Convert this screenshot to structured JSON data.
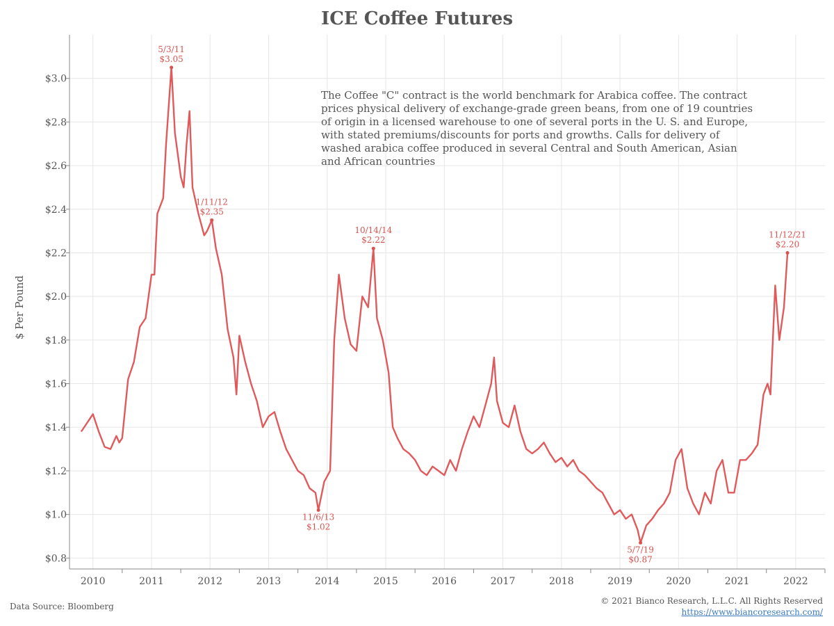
{
  "header": {
    "title": "ICE Coffee Futures"
  },
  "description": "The Coffee \"C\" contract is the world benchmark for Arabica coffee. The contract prices physical delivery of exchange-grade green beans, from one of 19 countries of origin in a licensed warehouse to one of several ports in the U. S. and Europe, with stated premiums/discounts for ports and growths. Calls for delivery of washed arabica coffee produced in several Central and South American, Asian and African countries",
  "footer": {
    "source": "Data Source: Bloomberg",
    "copyright": "© 2021 Bianco Research, L.L.C. All Rights Reserved",
    "url": "https://www.biancoresearch.com/"
  },
  "colors": {
    "line": "#e05a5c",
    "annotation": "#d9534f",
    "grid": "#e6e6e6",
    "axis": "#888888"
  },
  "chart_data": {
    "type": "line",
    "title": "ICE Coffee Futures",
    "xlabel": "",
    "ylabel": "$ Per Pound",
    "xlim": [
      2009.6,
      2022.5
    ],
    "ylim": [
      0.75,
      3.2
    ],
    "x_ticks": [
      2010,
      2011,
      2012,
      2013,
      2014,
      2015,
      2016,
      2017,
      2018,
      2019,
      2020,
      2021,
      2022
    ],
    "x_tick_labels": [
      "2010",
      "2011",
      "2012",
      "2013",
      "2014",
      "2015",
      "2016",
      "2017",
      "2018",
      "2019",
      "2020",
      "2021",
      "2022"
    ],
    "y_ticks": [
      0.8,
      1.0,
      1.2,
      1.4,
      1.6,
      1.8,
      2.0,
      2.2,
      2.4,
      2.6,
      2.8,
      3.0
    ],
    "y_tick_labels": [
      "$0.8",
      "$1.0",
      "$1.2",
      "$1.4",
      "$1.6",
      "$1.8",
      "$2.0",
      "$2.2",
      "$2.4",
      "$2.6",
      "$2.8",
      "$3.0"
    ],
    "grid": true,
    "series": [
      {
        "name": "ICE Coffee Futures",
        "x": [
          2009.8,
          2009.9,
          2010.0,
          2010.1,
          2010.2,
          2010.3,
          2010.4,
          2010.45,
          2010.5,
          2010.6,
          2010.7,
          2010.8,
          2010.9,
          2011.0,
          2011.05,
          2011.1,
          2011.2,
          2011.25,
          2011.34,
          2011.4,
          2011.5,
          2011.55,
          2011.6,
          2011.65,
          2011.7,
          2011.8,
          2011.9,
          2011.95,
          2012.03,
          2012.1,
          2012.2,
          2012.3,
          2012.4,
          2012.45,
          2012.5,
          2012.6,
          2012.7,
          2012.8,
          2012.9,
          2013.0,
          2013.1,
          2013.2,
          2013.3,
          2013.4,
          2013.5,
          2013.6,
          2013.7,
          2013.8,
          2013.85,
          2013.95,
          2014.05,
          2014.12,
          2014.2,
          2014.3,
          2014.4,
          2014.5,
          2014.6,
          2014.7,
          2014.79,
          2014.85,
          2014.95,
          2015.05,
          2015.12,
          2015.2,
          2015.3,
          2015.4,
          2015.5,
          2015.6,
          2015.7,
          2015.8,
          2015.9,
          2016.0,
          2016.1,
          2016.2,
          2016.3,
          2016.4,
          2016.5,
          2016.6,
          2016.7,
          2016.8,
          2016.85,
          2016.9,
          2017.0,
          2017.1,
          2017.2,
          2017.3,
          2017.4,
          2017.5,
          2017.6,
          2017.7,
          2017.8,
          2017.9,
          2018.0,
          2018.1,
          2018.2,
          2018.3,
          2018.4,
          2018.5,
          2018.6,
          2018.7,
          2018.8,
          2018.9,
          2019.0,
          2019.1,
          2019.2,
          2019.3,
          2019.35,
          2019.45,
          2019.55,
          2019.65,
          2019.75,
          2019.85,
          2019.95,
          2020.05,
          2020.15,
          2020.25,
          2020.35,
          2020.45,
          2020.55,
          2020.65,
          2020.75,
          2020.85,
          2020.95,
          2021.05,
          2021.15,
          2021.25,
          2021.35,
          2021.45,
          2021.52,
          2021.57,
          2021.65,
          2021.72,
          2021.8,
          2021.86
        ],
        "y": [
          1.38,
          1.42,
          1.46,
          1.38,
          1.31,
          1.3,
          1.36,
          1.33,
          1.35,
          1.62,
          1.7,
          1.86,
          1.9,
          2.1,
          2.1,
          2.38,
          2.45,
          2.7,
          3.05,
          2.75,
          2.55,
          2.5,
          2.7,
          2.85,
          2.5,
          2.38,
          2.28,
          2.3,
          2.35,
          2.22,
          2.1,
          1.85,
          1.72,
          1.55,
          1.82,
          1.7,
          1.6,
          1.52,
          1.4,
          1.45,
          1.47,
          1.38,
          1.3,
          1.25,
          1.2,
          1.18,
          1.12,
          1.1,
          1.02,
          1.15,
          1.2,
          1.8,
          2.1,
          1.9,
          1.78,
          1.75,
          2.0,
          1.95,
          2.22,
          1.9,
          1.8,
          1.65,
          1.4,
          1.35,
          1.3,
          1.28,
          1.25,
          1.2,
          1.18,
          1.22,
          1.2,
          1.18,
          1.25,
          1.2,
          1.3,
          1.38,
          1.45,
          1.4,
          1.5,
          1.6,
          1.72,
          1.52,
          1.42,
          1.4,
          1.5,
          1.38,
          1.3,
          1.28,
          1.3,
          1.33,
          1.28,
          1.24,
          1.26,
          1.22,
          1.25,
          1.2,
          1.18,
          1.15,
          1.12,
          1.1,
          1.05,
          1.0,
          1.02,
          0.98,
          1.0,
          0.93,
          0.87,
          0.95,
          0.98,
          1.02,
          1.05,
          1.1,
          1.25,
          1.3,
          1.12,
          1.05,
          1.0,
          1.1,
          1.05,
          1.2,
          1.25,
          1.1,
          1.1,
          1.25,
          1.25,
          1.28,
          1.32,
          1.55,
          1.6,
          1.55,
          2.05,
          1.8,
          1.95,
          2.2
        ]
      }
    ],
    "annotations": [
      {
        "date": "5/3/11",
        "value": "$3.05",
        "x": 2011.34,
        "y": 3.05
      },
      {
        "date": "1/11/12",
        "value": "$2.35",
        "x": 2012.03,
        "y": 2.35
      },
      {
        "date": "11/6/13",
        "value": "$1.02",
        "x": 2013.85,
        "y": 1.02
      },
      {
        "date": "10/14/14",
        "value": "$2.22",
        "x": 2014.79,
        "y": 2.22
      },
      {
        "date": "5/7/19",
        "value": "$0.87",
        "x": 2019.35,
        "y": 0.87
      },
      {
        "date": "11/12/21",
        "value": "$2.20",
        "x": 2021.86,
        "y": 2.2
      }
    ]
  }
}
